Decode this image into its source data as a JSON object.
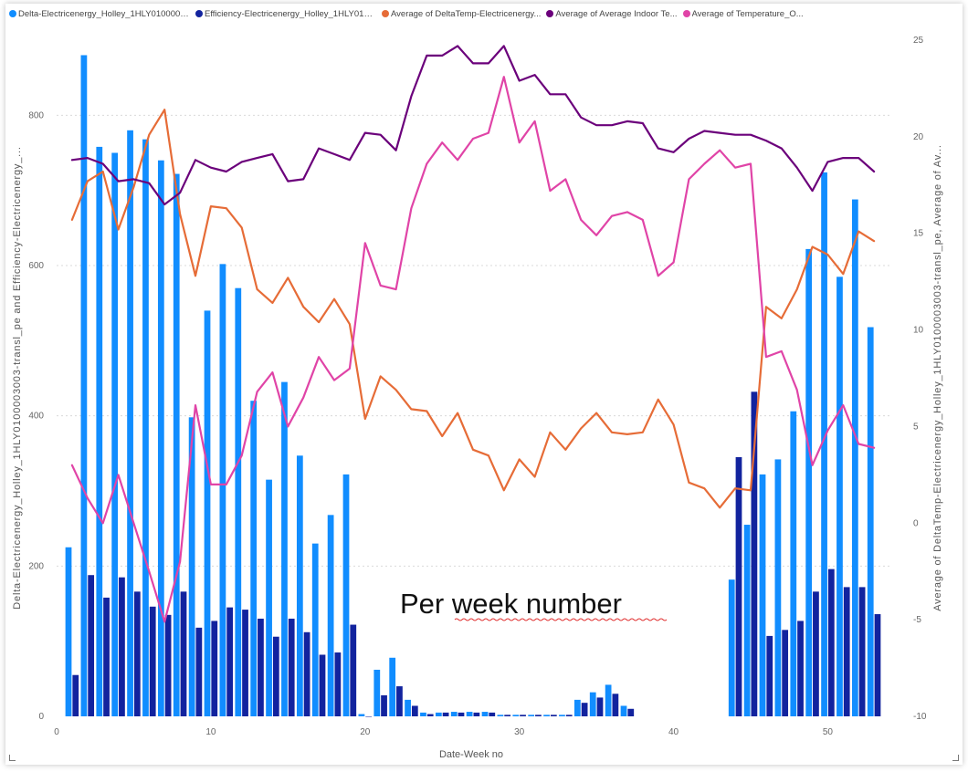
{
  "legend": [
    {
      "label": "Delta-Electricenergy_Holley_1HLY0100003003-tran...",
      "color": "#118DFF"
    },
    {
      "label": "Efficiency-Electricenergy_Holley_1HLY0100...",
      "color": "#12239E"
    },
    {
      "label": "Average of DeltaTemp-Electricenergy...",
      "color": "#E66C37"
    },
    {
      "label": "Average of Average Indoor Te...",
      "color": "#6B007B"
    },
    {
      "label": "Average of Temperature_O...",
      "color": "#E044A7"
    }
  ],
  "annotation": {
    "text": "Per week number"
  },
  "chart_data": {
    "type": "bar",
    "xlabel": "Date-Week no",
    "ylabel": "Delta-Electricenergy_Holley_1HLY0100003003-transl_pe and Efficiency-Electricenergy_...",
    "y2label": "Average of DeltaTemp-Electricenergy_Holley_1HLY0100003003-transl_pe, Average of Av...",
    "xlim": [
      0,
      54
    ],
    "ylim": [
      0,
      900
    ],
    "y2lim": [
      -10,
      25
    ],
    "x_ticks": [
      0,
      10,
      20,
      30,
      40,
      50
    ],
    "y_ticks": [
      0,
      200,
      400,
      600,
      800
    ],
    "y2_ticks": [
      -10,
      -5,
      0,
      5,
      10,
      15,
      20,
      25
    ],
    "weeks": [
      1,
      2,
      3,
      4,
      5,
      6,
      7,
      8,
      9,
      10,
      11,
      12,
      13,
      14,
      15,
      16,
      17,
      18,
      19,
      20,
      21,
      22,
      23,
      24,
      25,
      26,
      27,
      28,
      29,
      30,
      31,
      32,
      33,
      34,
      35,
      36,
      37,
      38,
      39,
      40,
      41,
      42,
      43,
      44,
      45,
      46,
      47,
      48,
      49,
      50,
      51,
      52,
      53
    ],
    "bar_series": [
      {
        "name": "Delta-Electricenergy_Holley_1HLY0100003003-tran...",
        "color": "#118DFF",
        "values": [
          225,
          880,
          758,
          750,
          780,
          768,
          740,
          722,
          398,
          540,
          602,
          570,
          420,
          315,
          445,
          347,
          230,
          268,
          322,
          3,
          62,
          78,
          22,
          5,
          5,
          6,
          6,
          6,
          2,
          2,
          2,
          2,
          2,
          22,
          32,
          42,
          14,
          null,
          null,
          null,
          null,
          null,
          null,
          182,
          255,
          322,
          342,
          406,
          622,
          724,
          585,
          688,
          518
        ]
      },
      {
        "name": "Efficiency-Electricenergy_Holley_1HLY0100...",
        "color": "#12239E",
        "values": [
          55,
          188,
          158,
          185,
          166,
          146,
          135,
          166,
          118,
          127,
          145,
          142,
          130,
          106,
          130,
          112,
          82,
          85,
          122,
          0,
          28,
          40,
          14,
          3,
          5,
          5,
          5,
          5,
          2,
          2,
          2,
          2,
          2,
          18,
          25,
          30,
          10,
          null,
          null,
          null,
          null,
          null,
          null,
          345,
          432,
          107,
          115,
          127,
          166,
          196,
          172,
          172,
          136
        ]
      }
    ],
    "line_series": [
      {
        "name": "Average of DeltaTemp-Electricenergy...",
        "axis": "right",
        "color": "#E66C37",
        "values": [
          15.7,
          17.7,
          18.2,
          15.2,
          17.4,
          20.1,
          21.4,
          16.0,
          12.8,
          16.4,
          16.3,
          15.3,
          12.1,
          11.4,
          12.7,
          11.2,
          10.4,
          11.6,
          10.3,
          5.4,
          7.6,
          6.9,
          5.9,
          5.8,
          4.5,
          5.7,
          3.8,
          3.5,
          1.7,
          3.3,
          2.4,
          4.7,
          3.8,
          4.9,
          5.7,
          4.7,
          4.6,
          4.7,
          6.4,
          5.1,
          2.1,
          1.8,
          0.8,
          1.8,
          1.7,
          11.2,
          10.6,
          12.1,
          14.3,
          13.9,
          12.9,
          15.1,
          14.6
        ]
      },
      {
        "name": "Average of Average Indoor Te...",
        "axis": "right",
        "color": "#6B007B",
        "values": [
          18.8,
          18.9,
          18.6,
          17.7,
          17.8,
          17.6,
          16.5,
          17.1,
          18.8,
          18.4,
          18.2,
          18.7,
          18.9,
          19.1,
          17.7,
          17.8,
          19.4,
          19.1,
          18.8,
          20.2,
          20.1,
          19.3,
          22.1,
          24.2,
          24.2,
          24.7,
          23.8,
          23.8,
          24.7,
          22.9,
          23.2,
          22.2,
          22.2,
          21.0,
          20.6,
          20.6,
          20.8,
          20.7,
          19.4,
          19.2,
          19.9,
          20.3,
          20.2,
          20.1,
          20.1,
          19.8,
          19.4,
          18.4,
          17.2,
          18.7,
          18.9,
          18.9,
          18.2
        ]
      },
      {
        "name": "Average of Temperature_O...",
        "axis": "right",
        "color": "#E044A7",
        "values": [
          3.0,
          1.3,
          0,
          2.5,
          0,
          -2.5,
          -5.1,
          -2.0,
          6.1,
          2.0,
          2.0,
          3.5,
          6.8,
          7.8,
          5.0,
          6.5,
          8.6,
          7.4,
          8.0,
          14.5,
          12.3,
          12.1,
          16.3,
          18.6,
          19.7,
          18.8,
          19.9,
          20.2,
          23.1,
          19.7,
          20.8,
          17.2,
          17.8,
          15.7,
          14.9,
          15.9,
          16.1,
          15.7,
          12.8,
          13.5,
          17.8,
          18.6,
          19.3,
          18.4,
          18.6,
          8.6,
          8.9,
          6.9,
          3.0,
          4.8,
          6.1,
          4.1,
          3.9
        ]
      }
    ]
  }
}
